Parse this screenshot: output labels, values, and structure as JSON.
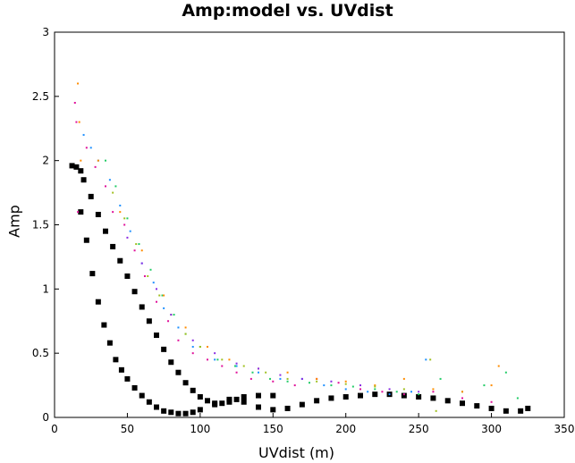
{
  "chart_data": {
    "type": "scatter",
    "title": "Amp:model vs. UVdist",
    "xlabel": "UVdist (m)",
    "ylabel": "Amp",
    "xlim": [
      0,
      350
    ],
    "ylim": [
      0,
      3
    ],
    "xticks": [
      "0",
      "50",
      "100",
      "150",
      "200",
      "250",
      "300",
      "350"
    ],
    "yticks": [
      "0",
      "0.5",
      "1",
      "1.5",
      "2",
      "2.5",
      "3"
    ],
    "grid": false,
    "legend": "none",
    "series": [
      {
        "color": "#000000",
        "marker": "square",
        "x": [
          12,
          15,
          18,
          20,
          25,
          30,
          35,
          40,
          45,
          50,
          55,
          60,
          65,
          70,
          75,
          80,
          85,
          90,
          95,
          100,
          105,
          110,
          115,
          120,
          125,
          130,
          140,
          150,
          160,
          170,
          180,
          190,
          200,
          210,
          220,
          230,
          240,
          250,
          260,
          270,
          280,
          290,
          300,
          310,
          320,
          325
        ],
        "y": [
          1.96,
          1.95,
          1.92,
          1.85,
          1.72,
          1.58,
          1.45,
          1.33,
          1.22,
          1.1,
          0.98,
          0.86,
          0.75,
          0.64,
          0.53,
          0.43,
          0.35,
          0.27,
          0.21,
          0.16,
          0.13,
          0.11,
          0.11,
          0.12,
          0.14,
          0.12,
          0.08,
          0.06,
          0.07,
          0.1,
          0.13,
          0.15,
          0.16,
          0.17,
          0.18,
          0.18,
          0.17,
          0.16,
          0.15,
          0.13,
          0.11,
          0.09,
          0.07,
          0.05,
          0.05,
          0.07
        ]
      },
      {
        "color": "#000000",
        "marker": "square",
        "x": [
          18,
          22,
          26,
          30,
          34,
          38,
          42,
          46,
          50,
          55,
          60,
          65,
          70,
          75,
          80,
          85,
          90,
          95,
          100,
          110,
          120,
          130,
          140,
          150
        ],
        "y": [
          1.6,
          1.38,
          1.12,
          0.9,
          0.72,
          0.58,
          0.45,
          0.37,
          0.3,
          0.23,
          0.17,
          0.12,
          0.08,
          0.05,
          0.04,
          0.03,
          0.03,
          0.04,
          0.06,
          0.1,
          0.14,
          0.16,
          0.17,
          0.17
        ]
      },
      {
        "color": "#e0119a",
        "marker": "dot",
        "x": [
          14,
          15,
          16,
          22,
          28,
          35,
          40,
          48,
          55,
          62,
          70,
          78,
          85,
          95,
          105,
          115,
          125,
          135,
          150,
          165,
          180,
          195,
          210,
          225,
          240,
          260,
          280,
          300
        ],
        "y": [
          2.45,
          2.3,
          1.6,
          2.1,
          1.95,
          1.8,
          1.6,
          1.5,
          1.3,
          1.1,
          0.9,
          0.75,
          0.6,
          0.5,
          0.45,
          0.4,
          0.35,
          0.3,
          0.28,
          0.25,
          0.3,
          0.27,
          0.22,
          0.2,
          0.18,
          0.2,
          0.15,
          0.12
        ]
      },
      {
        "color": "#1e90ff",
        "marker": "dot",
        "x": [
          20,
          25,
          30,
          38,
          45,
          52,
          60,
          68,
          75,
          85,
          95,
          110,
          125,
          140,
          155,
          170,
          185,
          200,
          215,
          230,
          245,
          255
        ],
        "y": [
          2.2,
          2.1,
          2.0,
          1.85,
          1.65,
          1.45,
          1.2,
          1.05,
          0.85,
          0.7,
          0.55,
          0.45,
          0.4,
          0.35,
          0.3,
          0.3,
          0.25,
          0.22,
          0.2,
          0.18,
          0.2,
          0.45
        ]
      },
      {
        "color": "#22cc66",
        "marker": "dot",
        "x": [
          35,
          42,
          50,
          58,
          66,
          74,
          82,
          90,
          100,
          112,
          124,
          136,
          148,
          160,
          175,
          190,
          205,
          220,
          235,
          250,
          265,
          280,
          295,
          310,
          318
        ],
        "y": [
          2.0,
          1.8,
          1.55,
          1.35,
          1.15,
          0.95,
          0.8,
          0.65,
          0.55,
          0.45,
          0.4,
          0.35,
          0.3,
          0.28,
          0.27,
          0.25,
          0.24,
          0.22,
          0.2,
          0.18,
          0.3,
          0.2,
          0.25,
          0.35,
          0.15
        ]
      },
      {
        "color": "#ff8c00",
        "marker": "dot",
        "x": [
          16,
          17,
          18,
          30,
          45,
          60,
          75,
          90,
          105,
          120,
          140,
          160,
          180,
          200,
          220,
          240,
          260,
          280,
          300,
          305
        ],
        "y": [
          2.6,
          2.3,
          2.0,
          2.0,
          1.6,
          1.3,
          0.95,
          0.7,
          0.55,
          0.45,
          0.38,
          0.35,
          0.3,
          0.28,
          0.25,
          0.3,
          0.22,
          0.2,
          0.25,
          0.4
        ]
      },
      {
        "color": "#a0c020",
        "marker": "dot",
        "x": [
          40,
          48,
          56,
          64,
          72,
          80,
          90,
          100,
          115,
          130,
          145,
          160,
          180,
          200,
          220,
          240,
          258,
          262
        ],
        "y": [
          1.75,
          1.55,
          1.35,
          1.1,
          0.95,
          0.8,
          0.65,
          0.55,
          0.45,
          0.4,
          0.35,
          0.3,
          0.28,
          0.26,
          0.24,
          0.22,
          0.45,
          0.05
        ]
      },
      {
        "color": "#8a2be2",
        "marker": "dot",
        "x": [
          50,
          60,
          70,
          80,
          95,
          110,
          125,
          140,
          155,
          170,
          190,
          210,
          230,
          250
        ],
        "y": [
          1.4,
          1.2,
          1.0,
          0.8,
          0.6,
          0.5,
          0.42,
          0.38,
          0.33,
          0.3,
          0.28,
          0.25,
          0.22,
          0.2
        ]
      }
    ]
  }
}
